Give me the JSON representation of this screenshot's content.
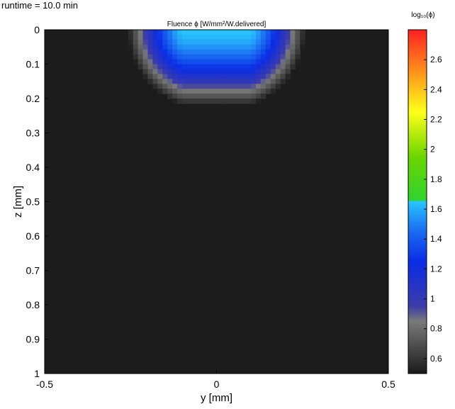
{
  "header": {
    "runtime": "runtime = 10.0 min"
  },
  "chart_data": {
    "type": "heatmap",
    "title": "Fluence ϕ [W/mm²/W.delivered]",
    "xlabel": "y [mm]",
    "ylabel": "z [mm]",
    "xlim": [
      -0.5,
      0.5
    ],
    "ylim": [
      0,
      1
    ],
    "y_axis_inverted": true,
    "xticks": [
      -0.5,
      0,
      0.5
    ],
    "xtick_labels": [
      "-0.5",
      "0",
      "0.5"
    ],
    "yticks": [
      0,
      0.1,
      0.2,
      0.3,
      0.4,
      0.5,
      0.6,
      0.7,
      0.8,
      0.9,
      1
    ],
    "ytick_labels": [
      "0",
      "0.1",
      "0.2",
      "0.3",
      "0.4",
      "0.5",
      "0.6",
      "0.7",
      "0.8",
      "0.9",
      "1"
    ],
    "background_color": "#1c1c1c",
    "field": {
      "description": "beam spot entering from top: uniform region at surface, decaying with depth",
      "beam_halfwidth_y": 0.1,
      "saturated_value": 1.65,
      "center_y": 0,
      "decay_depth_z": 0.22,
      "min_value": 0.5
    },
    "colorbar": {
      "label": "log₁₀(ϕ)",
      "range": [
        0.5,
        2.8
      ],
      "ticks": [
        0.6,
        0.8,
        1,
        1.2,
        1.4,
        1.6,
        1.8,
        2,
        2.2,
        2.4,
        2.6
      ],
      "tick_labels": [
        "0.6",
        "0.8",
        "1",
        "1.2",
        "1.4",
        "1.6",
        "1.8",
        "2",
        "2.2",
        "2.4",
        "2.6"
      ],
      "stops": [
        {
          "v": 0.5,
          "color": "#1a1a1a"
        },
        {
          "v": 0.85,
          "color": "#7a7a7a"
        },
        {
          "v": 0.95,
          "color": "#3c3ca8"
        },
        {
          "v": 1.25,
          "color": "#0a2ce6"
        },
        {
          "v": 1.45,
          "color": "#1a6cf0"
        },
        {
          "v": 1.65,
          "color": "#29c4ff"
        },
        {
          "v": 1.66,
          "color": "#2fd32f"
        },
        {
          "v": 1.95,
          "color": "#6ad600"
        },
        {
          "v": 2.25,
          "color": "#ffff1a"
        },
        {
          "v": 2.5,
          "color": "#ff9a1a"
        },
        {
          "v": 2.8,
          "color": "#ff2020"
        }
      ]
    }
  }
}
